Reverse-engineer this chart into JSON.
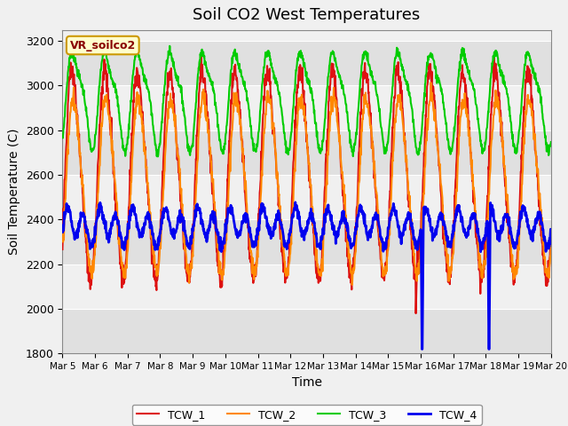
{
  "title": "Soil CO2 West Temperatures",
  "xlabel": "Time",
  "ylabel": "Soil Temperature (C)",
  "ylim": [
    1800,
    3250
  ],
  "xlim": [
    0,
    15
  ],
  "xtick_labels": [
    "Mar 5",
    "Mar 6",
    "Mar 7",
    "Mar 8",
    "Mar 9",
    "Mar 10",
    "Mar 11",
    "Mar 12",
    "Mar 13",
    "Mar 14",
    "Mar 15",
    "Mar 16",
    "Mar 17",
    "Mar 18",
    "Mar 19",
    "Mar 20"
  ],
  "label_box_text": "VR_soilco2",
  "legend_entries": [
    "TCW_1",
    "TCW_2",
    "TCW_3",
    "TCW_4"
  ],
  "colors": {
    "TCW_1": "#dd1111",
    "TCW_2": "#ff8800",
    "TCW_3": "#00cc00",
    "TCW_4": "#0000ee"
  },
  "linewidth": 1.5,
  "background_color": "#f0f0f0",
  "band_colors": [
    "#e0e0e0",
    "#f0f0f0"
  ],
  "title_fontsize": 13,
  "axis_label_fontsize": 10
}
